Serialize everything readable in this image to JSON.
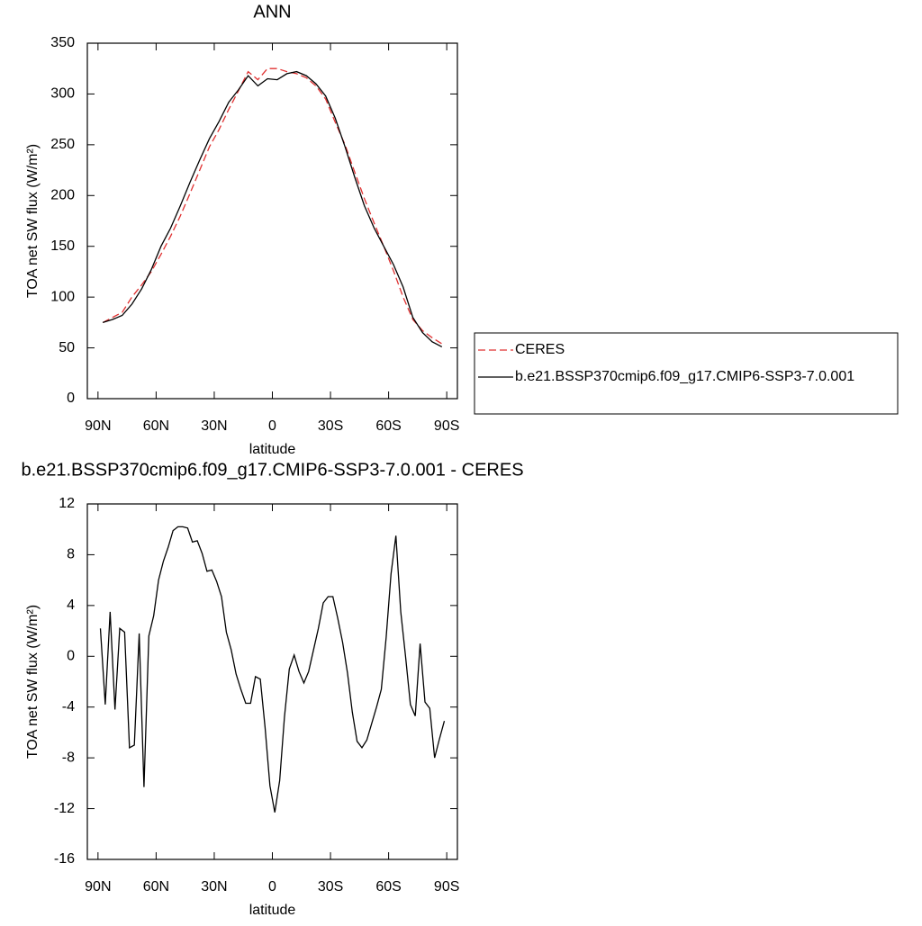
{
  "chart_data": [
    {
      "type": "line",
      "title": "ANN",
      "xlabel": "latitude",
      "ylabel": "TOA net SW flux (W/m²)",
      "x": [
        87.5,
        82.5,
        77.5,
        72.5,
        67.5,
        62.5,
        57.5,
        52.5,
        47.5,
        42.5,
        37.5,
        32.5,
        27.5,
        22.5,
        17.5,
        12.5,
        7.5,
        2.5,
        -2.5,
        -7.5,
        -12.5,
        -17.5,
        -22.5,
        -27.5,
        -32.5,
        -37.5,
        -42.5,
        -47.5,
        -52.5,
        -57.5,
        -62.5,
        -67.5,
        -72.5,
        -77.5,
        -82.5,
        -87.5
      ],
      "series": [
        {
          "name": "CERES",
          "color": "#e03030",
          "linestyle": "dashed",
          "values": [
            75,
            80,
            85,
            100,
            112,
            125,
            142,
            160,
            180,
            202,
            225,
            248,
            265,
            285,
            303,
            322,
            314,
            325,
            325,
            322,
            320,
            316,
            308,
            295,
            272,
            250,
            223,
            197,
            173,
            150,
            126,
            100,
            78,
            67,
            60,
            54
          ]
        },
        {
          "name": "b.e21.BSSP370cmip6.f09_g17.CMIP6-SSP3-7.0.001",
          "color": "#000000",
          "linestyle": "solid",
          "values": [
            75,
            78,
            82,
            93,
            108,
            127,
            150,
            168,
            190,
            213,
            235,
            256,
            273,
            292,
            304,
            318,
            308,
            315,
            314,
            320,
            322,
            318,
            310,
            298,
            276,
            248,
            218,
            190,
            168,
            150,
            132,
            110,
            80,
            65,
            56,
            51
          ]
        }
      ],
      "xlim": [
        95.5,
        -95.5
      ],
      "xticks": [
        {
          "value": 90,
          "label": "90N"
        },
        {
          "value": 60,
          "label": "60N"
        },
        {
          "value": 30,
          "label": "30N"
        },
        0,
        {
          "value": -30,
          "label": "30S"
        },
        {
          "value": -60,
          "label": "60S"
        },
        {
          "value": -90,
          "label": "90S"
        }
      ],
      "ylim": [
        0,
        350
      ],
      "yticks": [
        0,
        50,
        100,
        150,
        200,
        250,
        300,
        350
      ],
      "legend": "right"
    },
    {
      "type": "line",
      "title": "b.e21.BSSP370cmip6.f09_g17.CMIP6-SSP3-7.0.001 - CERES",
      "xlabel": "latitude",
      "ylabel": "TOA net SW flux (W/m²)",
      "x": [
        88.75,
        86.25,
        83.75,
        81.25,
        78.75,
        76.25,
        73.75,
        71.25,
        68.75,
        66.25,
        63.75,
        61.25,
        58.75,
        56.25,
        53.75,
        51.25,
        48.75,
        46.25,
        43.75,
        41.25,
        38.75,
        36.25,
        33.75,
        31.25,
        28.75,
        26.25,
        23.75,
        21.25,
        18.75,
        16.25,
        13.75,
        11.25,
        8.75,
        6.25,
        3.75,
        1.25,
        -1.25,
        -3.75,
        -6.25,
        -8.75,
        -11.25,
        -13.75,
        -16.25,
        -18.75,
        -21.25,
        -23.75,
        -26.25,
        -28.75,
        -31.25,
        -33.75,
        -36.25,
        -38.75,
        -41.25,
        -43.75,
        -46.25,
        -48.75,
        -51.25,
        -53.75,
        -56.25,
        -58.75,
        -61.25,
        -63.75,
        -66.25,
        -68.75,
        -71.25,
        -73.75,
        -76.25,
        -78.75,
        -81.25,
        -83.75,
        -86.25,
        -88.75
      ],
      "series": [
        {
          "color": "#000000",
          "linestyle": "solid",
          "values": [
            2.2,
            -3.8,
            3.5,
            -4.2,
            2.2,
            1.9,
            -7.2,
            -7.0,
            1.8,
            -10.3,
            1.6,
            3.2,
            6.0,
            7.5,
            8.6,
            9.9,
            10.2,
            10.2,
            10.1,
            9.0,
            9.1,
            8.1,
            6.7,
            6.8,
            5.9,
            4.7,
            1.9,
            0.5,
            -1.4,
            -2.6,
            -3.7,
            -3.7,
            -1.6,
            -1.8,
            -5.6,
            -10.2,
            -12.3,
            -9.8,
            -4.8,
            -1.0,
            0.1,
            -1.2,
            -2.1,
            -1.2,
            0.5,
            2.2,
            4.2,
            4.7,
            4.7,
            3.0,
            1.1,
            -1.3,
            -4.4,
            -6.7,
            -7.2,
            -6.6,
            -5.3,
            -4.0,
            -2.6,
            1.5,
            6.5,
            9.5,
            3.5,
            0.0,
            -3.8,
            -4.7,
            1.0,
            -3.6,
            -4.1,
            -8.0,
            -6.5,
            -5.1
          ]
        }
      ],
      "xlim": [
        95.5,
        -95.5
      ],
      "xticks": [
        {
          "value": 90,
          "label": "90N"
        },
        {
          "value": 60,
          "label": "60N"
        },
        {
          "value": 30,
          "label": "30N"
        },
        0,
        {
          "value": -30,
          "label": "30S"
        },
        {
          "value": -60,
          "label": "60S"
        },
        {
          "value": -90,
          "label": "90S"
        }
      ],
      "ylim": [
        -16,
        12
      ],
      "yticks": [
        -16,
        -12,
        -8,
        -4,
        0,
        4,
        8,
        12
      ]
    }
  ]
}
